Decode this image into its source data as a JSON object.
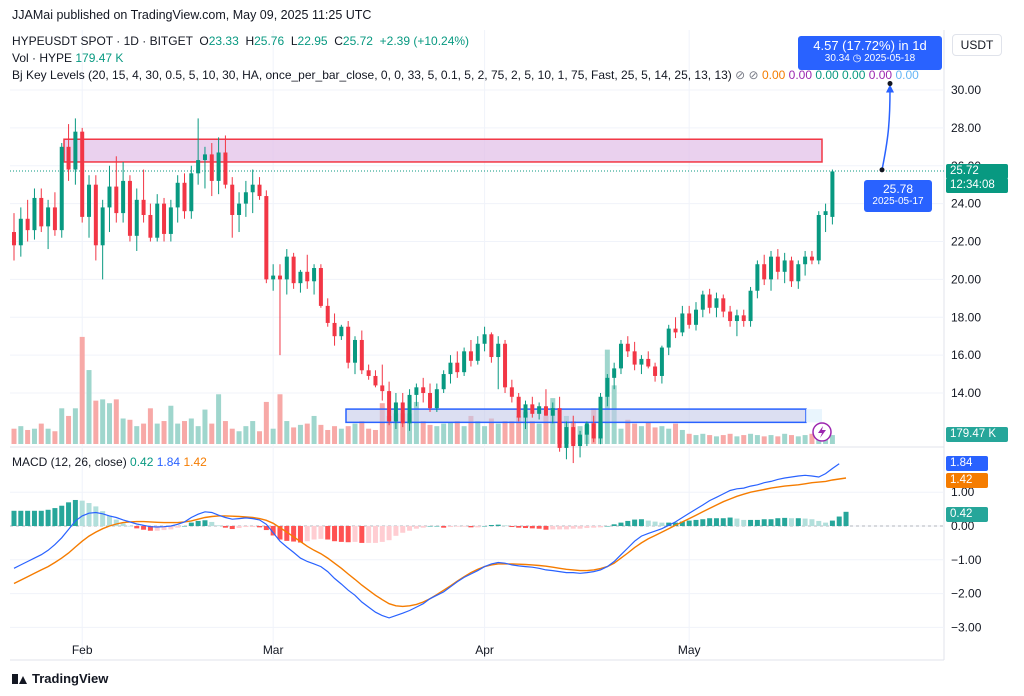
{
  "header": {
    "published": "JJAMai published on TradingView.com, May 09, 2025 11:25 UTC",
    "symbol_line": "HYPEUSDT SPOT · 1D · BITGET",
    "ohlc": {
      "o_label": "O",
      "o": "23.33",
      "h_label": "H",
      "h": "25.76",
      "l_label": "L",
      "l": "22.95",
      "c_label": "C",
      "c": "25.72",
      "change": "+2.39 (+10.24%)"
    },
    "volume_label": "Vol · HYPE",
    "volume_value": "179.47 K",
    "indicator_label": "Bj Key Levels (20, 15, 4, 30, 0.5, 5, 10, 30, HA, once_per_bar_close, 0, 0, 33, 5, 0.1, 5, 2, 75, 2, 5, 10, 1, 75, Fast, 25, 5, 14, 25, 13, 13)",
    "indicator_symbols": "⊘ ⊘",
    "indicator_values": [
      "0.00",
      "0.00",
      "0.00",
      "0.00",
      "0.00",
      "0.00"
    ],
    "currency_button": "USDT"
  },
  "macd_legend": {
    "label": "MACD (12, 26, close)",
    "hist": "0.42",
    "macd": "1.84",
    "signal": "1.42"
  },
  "callouts": {
    "target_top": "4.57 (17.72%) in 1d",
    "target_bottom": "30.34 ◷ 2025-05-18",
    "start_price": "25.78",
    "start_date": "2025-05-17"
  },
  "price_tags": {
    "last": "25.72",
    "countdown": "12:34:08",
    "volume": "179.47 K",
    "macd": "1.84",
    "signal": "1.42",
    "hist": "0.42"
  },
  "footer": {
    "brand": "TradingView"
  },
  "colors": {
    "up": "#089981",
    "down": "#f23645",
    "macd": "#2962ff",
    "signal": "#f57c00",
    "resistance_zone": "#e1bee7",
    "support_zone": "#c5cae9"
  },
  "chart_data": {
    "type": "candlestick",
    "x_labels": [
      {
        "label": "Feb",
        "date": "2025-02-01"
      },
      {
        "label": "Mar",
        "date": "2025-03-01"
      },
      {
        "label": "Apr",
        "date": "2025-04-01"
      },
      {
        "label": "May",
        "date": "2025-05-01"
      }
    ],
    "price_ticks": [
      "14.00",
      "16.00",
      "18.00",
      "20.00",
      "22.00",
      "24.00",
      "26.00",
      "28.00",
      "30.00"
    ],
    "price_range": [
      11.5,
      32.5
    ],
    "macd_ticks": [
      "1.00",
      "0.00",
      "−1.00",
      "−2.00",
      "−3.00"
    ],
    "macd_range": [
      -3.2,
      2.2
    ],
    "volume_axis_max": 500,
    "last_price": 25.72,
    "resistance_zone": [
      26.2,
      27.4
    ],
    "support_zone": [
      12.45,
      13.15
    ],
    "projection": {
      "from": 25.78,
      "to": 30.34
    },
    "candles": [
      [
        22.5,
        23.5,
        21.0,
        21.8
      ],
      [
        21.8,
        23.8,
        21.2,
        23.2
      ],
      [
        23.2,
        24.2,
        22.0,
        22.6
      ],
      [
        22.6,
        24.8,
        22.1,
        24.3
      ],
      [
        24.3,
        24.8,
        22.5,
        22.8
      ],
      [
        22.8,
        24.2,
        21.6,
        23.8
      ],
      [
        23.8,
        24.6,
        22.3,
        22.6
      ],
      [
        22.6,
        27.2,
        22.2,
        27.0
      ],
      [
        27.0,
        28.2,
        25.2,
        25.8
      ],
      [
        25.8,
        28.5,
        25.0,
        27.8
      ],
      [
        27.8,
        28.0,
        23.0,
        23.3
      ],
      [
        23.3,
        25.5,
        22.2,
        25.0
      ],
      [
        25.0,
        25.5,
        21.0,
        21.8
      ],
      [
        21.8,
        24.2,
        20.0,
        23.8
      ],
      [
        23.8,
        26.0,
        22.5,
        24.9
      ],
      [
        24.9,
        26.5,
        23.0,
        23.5
      ],
      [
        23.5,
        26.2,
        23.0,
        25.2
      ],
      [
        25.2,
        25.5,
        22.0,
        22.3
      ],
      [
        22.3,
        24.8,
        21.5,
        24.2
      ],
      [
        24.2,
        25.8,
        23.0,
        23.4
      ],
      [
        23.4,
        24.0,
        22.0,
        22.2
      ],
      [
        22.2,
        24.5,
        22.0,
        24.0
      ],
      [
        24.0,
        24.3,
        22.0,
        22.4
      ],
      [
        22.4,
        24.2,
        22.0,
        23.8
      ],
      [
        23.8,
        25.5,
        23.0,
        25.1
      ],
      [
        25.1,
        25.6,
        23.2,
        23.6
      ],
      [
        23.6,
        26.0,
        23.2,
        25.6
      ],
      [
        25.6,
        28.5,
        25.0,
        26.3
      ],
      [
        26.3,
        27.0,
        24.8,
        26.6
      ],
      [
        26.6,
        27.2,
        24.4,
        25.2
      ],
      [
        25.2,
        27.5,
        24.5,
        26.7
      ],
      [
        26.7,
        27.6,
        24.8,
        25.0
      ],
      [
        25.0,
        25.4,
        22.2,
        23.4
      ],
      [
        23.4,
        24.6,
        22.5,
        24.0
      ],
      [
        24.0,
        25.2,
        23.3,
        24.6
      ],
      [
        24.6,
        25.8,
        23.5,
        25.0
      ],
      [
        25.0,
        25.4,
        24.2,
        24.4
      ],
      [
        24.4,
        24.7,
        19.8,
        20.0
      ],
      [
        20.0,
        20.8,
        19.4,
        20.2
      ],
      [
        20.2,
        20.8,
        16.0,
        20.0
      ],
      [
        20.0,
        21.6,
        19.2,
        21.2
      ],
      [
        21.2,
        21.4,
        19.5,
        19.8
      ],
      [
        19.8,
        20.5,
        19.3,
        20.4
      ],
      [
        20.4,
        21.3,
        19.5,
        19.9
      ],
      [
        19.9,
        20.8,
        19.2,
        20.6
      ],
      [
        20.6,
        20.8,
        18.5,
        18.6
      ],
      [
        18.6,
        19.0,
        17.5,
        17.7
      ],
      [
        17.7,
        18.2,
        16.5,
        17.0
      ],
      [
        17.0,
        17.6,
        16.8,
        17.5
      ],
      [
        17.5,
        17.8,
        15.3,
        15.6
      ],
      [
        15.6,
        17.0,
        15.0,
        16.8
      ],
      [
        16.8,
        17.3,
        15.0,
        15.2
      ],
      [
        15.2,
        15.5,
        14.7,
        14.9
      ],
      [
        14.9,
        15.2,
        14.3,
        14.4
      ],
      [
        14.4,
        15.5,
        13.6,
        14.1
      ],
      [
        14.1,
        14.6,
        12.3,
        12.5
      ],
      [
        12.5,
        14.0,
        12.1,
        13.5
      ],
      [
        13.5,
        14.0,
        12.2,
        12.4
      ],
      [
        12.4,
        14.2,
        12.0,
        13.9
      ],
      [
        13.9,
        14.5,
        13.3,
        14.3
      ],
      [
        14.3,
        14.8,
        13.5,
        14.0
      ],
      [
        14.0,
        14.5,
        13.0,
        13.2
      ],
      [
        13.2,
        14.5,
        13.0,
        14.2
      ],
      [
        14.2,
        15.2,
        14.0,
        15.0
      ],
      [
        15.0,
        16.0,
        14.5,
        15.6
      ],
      [
        15.6,
        16.2,
        14.8,
        15.1
      ],
      [
        15.1,
        16.4,
        14.9,
        16.2
      ],
      [
        16.2,
        16.8,
        15.4,
        15.7
      ],
      [
        15.7,
        17.0,
        15.5,
        16.6
      ],
      [
        16.6,
        17.5,
        16.2,
        17.1
      ],
      [
        17.1,
        17.2,
        15.6,
        15.9
      ],
      [
        15.9,
        17.0,
        14.2,
        16.6
      ],
      [
        16.6,
        16.8,
        14.0,
        14.3
      ],
      [
        14.3,
        14.7,
        13.5,
        13.8
      ],
      [
        13.8,
        14.0,
        12.5,
        12.7
      ],
      [
        12.7,
        13.6,
        12.1,
        13.4
      ],
      [
        13.4,
        13.8,
        12.7,
        12.9
      ],
      [
        12.9,
        13.5,
        12.6,
        13.3
      ],
      [
        13.3,
        14.2,
        12.8,
        12.8
      ],
      [
        12.8,
        13.5,
        12.4,
        13.2
      ],
      [
        13.2,
        13.8,
        10.9,
        11.1
      ],
      [
        11.1,
        12.5,
        10.5,
        12.2
      ],
      [
        12.2,
        12.8,
        10.3,
        11.2
      ],
      [
        11.2,
        12.0,
        10.6,
        11.8
      ],
      [
        11.8,
        12.5,
        11.2,
        12.4
      ],
      [
        12.4,
        12.8,
        11.4,
        11.6
      ],
      [
        11.6,
        14.0,
        11.3,
        13.8
      ],
      [
        13.8,
        15.0,
        13.3,
        14.8
      ],
      [
        14.8,
        15.6,
        14.2,
        15.3
      ],
      [
        15.3,
        16.8,
        15.0,
        16.6
      ],
      [
        16.6,
        17.0,
        15.9,
        16.2
      ],
      [
        16.2,
        16.7,
        15.2,
        15.5
      ],
      [
        15.5,
        16.0,
        15.0,
        15.8
      ],
      [
        15.8,
        16.2,
        15.3,
        15.4
      ],
      [
        15.4,
        15.6,
        14.6,
        14.9
      ],
      [
        14.9,
        16.5,
        14.5,
        16.4
      ],
      [
        16.4,
        17.6,
        16.0,
        17.4
      ],
      [
        17.4,
        18.0,
        16.9,
        17.2
      ],
      [
        17.2,
        18.6,
        17.0,
        18.2
      ],
      [
        18.2,
        18.6,
        17.4,
        17.6
      ],
      [
        17.6,
        18.8,
        17.3,
        18.4
      ],
      [
        18.4,
        19.4,
        18.0,
        19.2
      ],
      [
        19.2,
        19.5,
        18.2,
        18.5
      ],
      [
        18.5,
        19.3,
        18.0,
        19.0
      ],
      [
        19.0,
        19.2,
        18.0,
        18.3
      ],
      [
        18.3,
        18.6,
        17.5,
        17.8
      ],
      [
        17.8,
        18.4,
        17.0,
        18.1
      ],
      [
        18.1,
        18.4,
        17.5,
        17.8
      ],
      [
        17.8,
        19.6,
        17.5,
        19.4
      ],
      [
        19.4,
        21.0,
        19.0,
        20.8
      ],
      [
        20.8,
        21.3,
        19.7,
        20.0
      ],
      [
        20.0,
        21.5,
        19.4,
        21.2
      ],
      [
        21.2,
        21.6,
        20.0,
        20.4
      ],
      [
        20.4,
        21.4,
        19.8,
        21.0
      ],
      [
        21.0,
        21.2,
        19.6,
        19.9
      ],
      [
        19.9,
        21.0,
        19.5,
        20.8
      ],
      [
        20.8,
        21.5,
        20.2,
        21.2
      ],
      [
        21.2,
        21.5,
        20.8,
        21.0
      ],
      [
        21.0,
        23.6,
        20.8,
        23.4
      ],
      [
        23.4,
        24.0,
        22.5,
        23.6
      ],
      [
        23.3,
        25.8,
        22.9,
        25.7
      ]
    ],
    "volume": [
      60,
      70,
      55,
      60,
      80,
      60,
      50,
      140,
      110,
      140,
      420,
      290,
      170,
      175,
      160,
      175,
      100,
      95,
      70,
      80,
      140,
      80,
      90,
      150,
      80,
      90,
      100,
      70,
      135,
      80,
      195,
      90,
      60,
      50,
      70,
      90,
      50,
      165,
      60,
      195,
      90,
      65,
      75,
      80,
      110,
      75,
      55,
      70,
      60,
      70,
      80,
      90,
      60,
      55,
      160,
      110,
      120,
      120,
      120,
      165,
      90,
      75,
      70,
      80,
      85,
      90,
      70,
      110,
      90,
      70,
      100,
      80,
      90,
      90,
      110,
      125,
      90,
      80,
      110,
      180,
      85,
      110,
      90,
      70,
      75,
      140,
      85,
      370,
      230,
      60,
      95,
      80,
      70,
      85,
      65,
      70,
      60,
      80,
      55,
      40,
      35,
      40,
      35,
      30,
      35,
      40,
      30,
      35,
      40,
      35,
      30,
      35,
      30,
      40,
      35,
      30,
      35,
      40,
      45,
      35,
      35,
      40,
      45
    ],
    "macd": [
      -1.25,
      -1.15,
      -1.05,
      -0.95,
      -0.85,
      -0.72,
      -0.55,
      -0.35,
      -0.1,
      0.15,
      0.3,
      0.38,
      0.4,
      0.36,
      0.3,
      0.25,
      0.18,
      0.12,
      0.06,
      0.02,
      -0.02,
      -0.03,
      -0.02,
      0.0,
      0.05,
      0.12,
      0.25,
      0.35,
      0.42,
      0.4,
      0.32,
      0.25,
      0.2,
      0.22,
      0.24,
      0.22,
      0.18,
      0.05,
      -0.2,
      -0.45,
      -0.62,
      -0.78,
      -0.95,
      -1.05,
      -1.12,
      -1.2,
      -1.35,
      -1.55,
      -1.72,
      -1.9,
      -2.05,
      -2.25,
      -2.4,
      -2.55,
      -2.65,
      -2.72,
      -2.65,
      -2.58,
      -2.5,
      -2.4,
      -2.3,
      -2.15,
      -2.05,
      -1.95,
      -1.8,
      -1.65,
      -1.52,
      -1.42,
      -1.32,
      -1.2,
      -1.12,
      -1.08,
      -1.1,
      -1.15,
      -1.18,
      -1.2,
      -1.22,
      -1.25,
      -1.3,
      -1.32,
      -1.35,
      -1.38,
      -1.38,
      -1.4,
      -1.38,
      -1.35,
      -1.3,
      -1.2,
      -1.05,
      -0.85,
      -0.65,
      -0.45,
      -0.3,
      -0.22,
      -0.15,
      -0.08,
      0.02,
      0.12,
      0.25,
      0.38,
      0.5,
      0.62,
      0.75,
      0.85,
      0.95,
      1.05,
      1.1,
      1.12,
      1.18,
      1.22,
      1.28,
      1.32,
      1.38,
      1.42,
      1.45,
      1.48,
      1.5,
      1.48,
      1.45,
      1.55,
      1.7,
      1.84
    ],
    "signal": [
      -1.7,
      -1.6,
      -1.5,
      -1.4,
      -1.3,
      -1.2,
      -1.08,
      -0.95,
      -0.8,
      -0.62,
      -0.45,
      -0.3,
      -0.18,
      -0.08,
      0.0,
      0.06,
      0.1,
      0.12,
      0.13,
      0.13,
      0.12,
      0.11,
      0.1,
      0.1,
      0.1,
      0.12,
      0.15,
      0.2,
      0.25,
      0.28,
      0.3,
      0.3,
      0.29,
      0.28,
      0.27,
      0.25,
      0.22,
      0.17,
      0.08,
      -0.05,
      -0.18,
      -0.32,
      -0.46,
      -0.6,
      -0.72,
      -0.82,
      -0.95,
      -1.1,
      -1.25,
      -1.42,
      -1.58,
      -1.75,
      -1.9,
      -2.05,
      -2.18,
      -2.3,
      -2.36,
      -2.38,
      -2.36,
      -2.32,
      -2.25,
      -2.15,
      -2.03,
      -1.9,
      -1.77,
      -1.63,
      -1.5,
      -1.38,
      -1.28,
      -1.2,
      -1.15,
      -1.12,
      -1.12,
      -1.12,
      -1.13,
      -1.14,
      -1.15,
      -1.17,
      -1.19,
      -1.22,
      -1.25,
      -1.28,
      -1.3,
      -1.32,
      -1.32,
      -1.3,
      -1.26,
      -1.2,
      -1.1,
      -0.95,
      -0.8,
      -0.64,
      -0.5,
      -0.38,
      -0.28,
      -0.18,
      -0.08,
      0.02,
      0.12,
      0.22,
      0.32,
      0.42,
      0.52,
      0.62,
      0.72,
      0.8,
      0.88,
      0.94,
      1.0,
      1.04,
      1.08,
      1.12,
      1.15,
      1.18,
      1.2,
      1.22,
      1.25,
      1.28,
      1.3,
      1.32,
      1.36,
      1.39,
      1.42
    ],
    "histogram": [
      0.45,
      0.45,
      0.45,
      0.45,
      0.45,
      0.48,
      0.53,
      0.6,
      0.7,
      0.77,
      0.75,
      0.68,
      0.58,
      0.44,
      0.3,
      0.19,
      0.08,
      0.0,
      -0.07,
      -0.11,
      -0.14,
      -0.14,
      -0.12,
      -0.1,
      -0.05,
      0.0,
      0.1,
      0.15,
      0.17,
      0.12,
      0.02,
      -0.05,
      -0.09,
      -0.06,
      -0.03,
      -0.03,
      -0.04,
      -0.12,
      -0.28,
      -0.4,
      -0.44,
      -0.46,
      -0.49,
      -0.45,
      -0.4,
      -0.38,
      -0.4,
      -0.45,
      -0.47,
      -0.48,
      -0.47,
      -0.5,
      -0.5,
      -0.5,
      -0.47,
      -0.42,
      -0.29,
      -0.2,
      -0.14,
      -0.08,
      -0.05,
      0.0,
      0.0,
      -0.05,
      -0.03,
      -0.02,
      -0.02,
      -0.04,
      -0.04,
      0.0,
      0.03,
      0.04,
      0.02,
      -0.03,
      -0.05,
      -0.06,
      -0.07,
      -0.08,
      -0.11,
      -0.1,
      -0.1,
      -0.1,
      -0.08,
      -0.08,
      -0.06,
      -0.05,
      -0.04,
      0.0,
      0.05,
      0.1,
      0.15,
      0.19,
      0.2,
      0.16,
      0.13,
      0.1,
      0.1,
      0.1,
      0.13,
      0.16,
      0.18,
      0.2,
      0.23,
      0.23,
      0.23,
      0.25,
      0.22,
      0.18,
      0.18,
      0.18,
      0.2,
      0.2,
      0.23,
      0.24,
      0.23,
      0.23,
      0.22,
      0.2,
      0.15,
      0.1,
      0.16,
      0.28,
      0.42
    ]
  }
}
